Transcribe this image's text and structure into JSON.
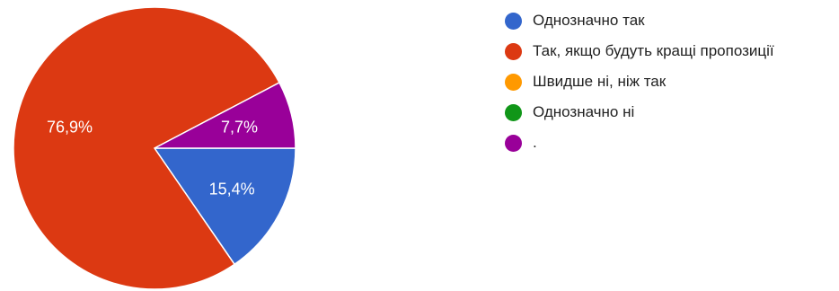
{
  "chart_data": {
    "type": "pie",
    "categories": [
      "Однозначно так",
      "Так, якщо будуть кращі пропозиції",
      "Швидше ні, ніж так",
      "Однозначно ні",
      "."
    ],
    "values": [
      15.4,
      76.9,
      0,
      0,
      7.7
    ],
    "value_labels": [
      "15,4%",
      "76,9%",
      "",
      "",
      "7,7%"
    ],
    "colors": [
      "#3366cc",
      "#dc3912",
      "#ff9900",
      "#109618",
      "#990099"
    ],
    "legend_position": "right",
    "start_angle_deg": 0,
    "direction": "clockwise"
  }
}
